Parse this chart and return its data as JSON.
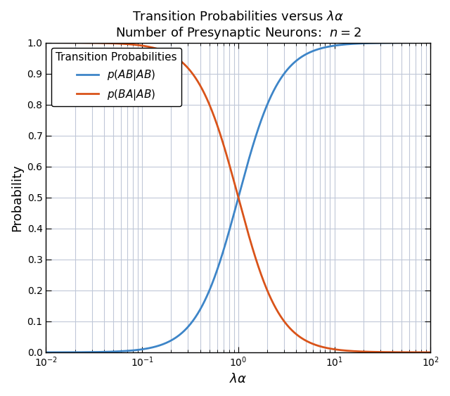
{
  "title_line1": "Transition Probabilities versus $\\lambda\\alpha$",
  "title_line2": "Number of Presynaptic Neurons:  $n = 2$",
  "xlabel": "$\\lambda\\alpha$",
  "ylabel": "Probability",
  "legend_title": "Transition Probabilities",
  "label_AB_AB": "$p(AB|AB)$",
  "label_BA_AB": "$p(BA|AB)$",
  "color_AB_AB": "#3d85c8",
  "color_BA_AB": "#d95319",
  "xlim": [
    0.01,
    100
  ],
  "ylim": [
    0,
    1
  ],
  "yticks": [
    0.0,
    0.1,
    0.2,
    0.3,
    0.4,
    0.5,
    0.6,
    0.7,
    0.8,
    0.9,
    1.0
  ],
  "line_width": 2.0,
  "background_color": "#ffffff",
  "grid_color": "#c0c8d8",
  "n": 2
}
